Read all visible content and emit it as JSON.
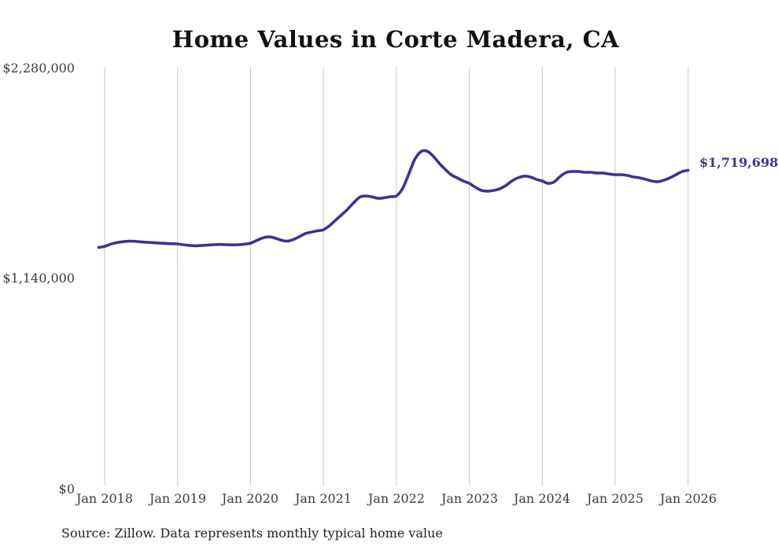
{
  "header": {
    "title": "Home Values in Corte Madera, CA"
  },
  "footer": {
    "source_note": "Source: Zillow. Data represents monthly typical home value"
  },
  "chart_data": {
    "type": "line",
    "title": "Home Values in Corte Madera, CA",
    "x_start": "2017-12",
    "x_interval": "monthly",
    "x_tick_labels": [
      "Jan 2018",
      "Jan 2019",
      "Jan 2020",
      "Jan 2021",
      "Jan 2022",
      "Jan 2023",
      "Jan 2024",
      "Jan 2025",
      "Jan 2026"
    ],
    "y_tick_labels": [
      "$0",
      "$1,140,000",
      "$2,280,000"
    ],
    "y_ticks": [
      0,
      1140000,
      2280000
    ],
    "ylim": [
      0,
      2280000
    ],
    "grid": "vertical-only",
    "legend": "none",
    "line_color": "#3a3494",
    "gridline_color": "#c9c9c9",
    "end_label": "$1,719,698",
    "end_value": 1719698,
    "series": [
      {
        "name": "Monthly typical home value",
        "values": [
          1302000,
          1308000,
          1320000,
          1328000,
          1333000,
          1336000,
          1335000,
          1332000,
          1330000,
          1328000,
          1326000,
          1324000,
          1322000,
          1321000,
          1317000,
          1313000,
          1311000,
          1313000,
          1315000,
          1317000,
          1318000,
          1317000,
          1316000,
          1317000,
          1320000,
          1325000,
          1340000,
          1353000,
          1360000,
          1353000,
          1342000,
          1336000,
          1344000,
          1360000,
          1377000,
          1385000,
          1392000,
          1398000,
          1420000,
          1450000,
          1479000,
          1510000,
          1545000,
          1575000,
          1581000,
          1576000,
          1568000,
          1571000,
          1577000,
          1581000,
          1620000,
          1696000,
          1777000,
          1820000,
          1824000,
          1799000,
          1760000,
          1726000,
          1696000,
          1679000,
          1662000,
          1649000,
          1628000,
          1611000,
          1607000,
          1611000,
          1620000,
          1637000,
          1662000,
          1679000,
          1688000,
          1684000,
          1671000,
          1662000,
          1649000,
          1658000,
          1688000,
          1709000,
          1713000,
          1713000,
          1709000,
          1709000,
          1705000,
          1705000,
          1700000,
          1696000,
          1696000,
          1692000,
          1684000,
          1679000,
          1671000,
          1662000,
          1658000,
          1666000,
          1679000,
          1696000,
          1713000,
          1719698
        ]
      }
    ]
  }
}
